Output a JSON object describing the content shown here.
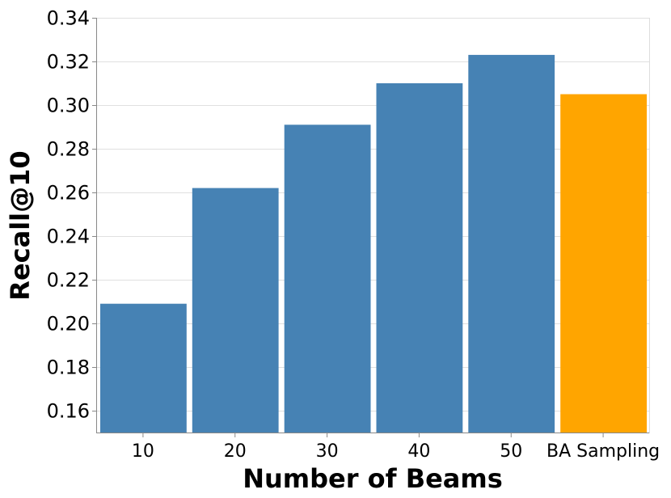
{
  "chart_data": {
    "type": "bar",
    "categories": [
      "10",
      "20",
      "30",
      "40",
      "50",
      "BA Sampling"
    ],
    "values": [
      0.209,
      0.262,
      0.291,
      0.31,
      0.323,
      0.305
    ],
    "bar_colors": [
      "#4682b4",
      "#4682b4",
      "#4682b4",
      "#4682b4",
      "#4682b4",
      "#ffa500"
    ],
    "xlabel": "Number of Beams",
    "ylabel": "Recall@10",
    "ylim": [
      0.15,
      0.34
    ],
    "yticks": [
      0.16,
      0.18,
      0.2,
      0.22,
      0.24,
      0.26,
      0.28,
      0.3,
      0.32,
      0.34
    ],
    "ytick_labels": [
      "0.16",
      "0.18",
      "0.20",
      "0.22",
      "0.24",
      "0.26",
      "0.28",
      "0.30",
      "0.32",
      "0.34"
    ],
    "grid": true
  },
  "colors": {
    "primary_bar": "#4682b4",
    "highlight_bar": "#ffa500",
    "grid": "#e0e0e0",
    "axis": "#888888"
  }
}
